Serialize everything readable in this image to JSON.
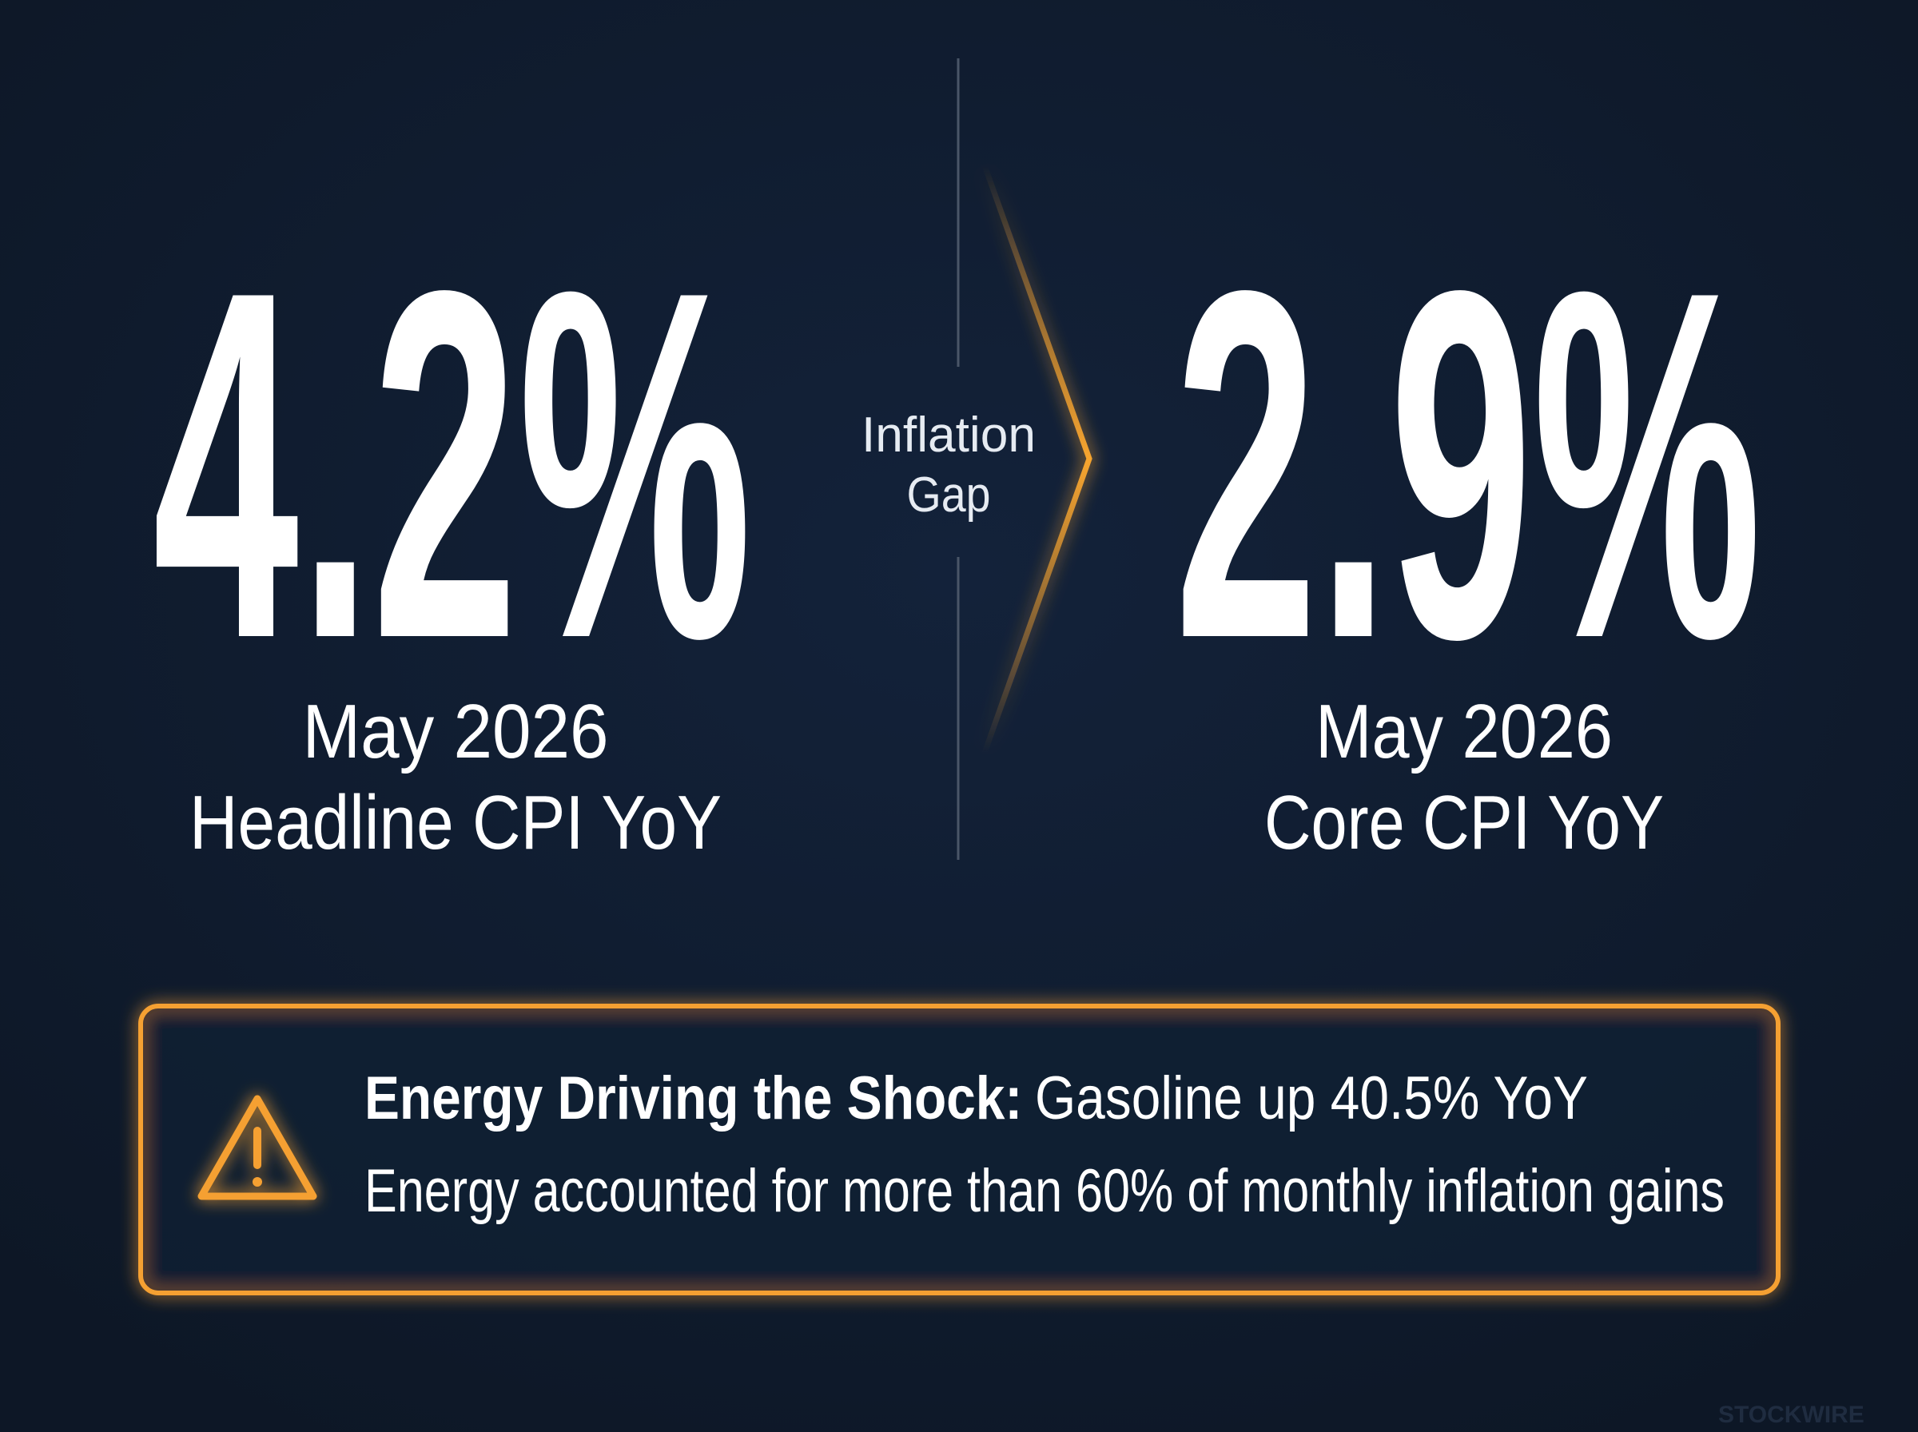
{
  "left": {
    "value": "4.2%",
    "date": "May 2026",
    "label": "Headline CPI YoY"
  },
  "center": {
    "line1": "Inflation",
    "line2": "Gap"
  },
  "right": {
    "value": "2.9%",
    "date": "May 2026",
    "label": "Core CPI YoY"
  },
  "alert": {
    "heading": "Energy Driving the Shock:",
    "headline": "Gasoline up 40.5% YoY",
    "detail": "Energy accounted for more than 60% of monthly inflation gains"
  },
  "watermark": "STOCKWIRE"
}
